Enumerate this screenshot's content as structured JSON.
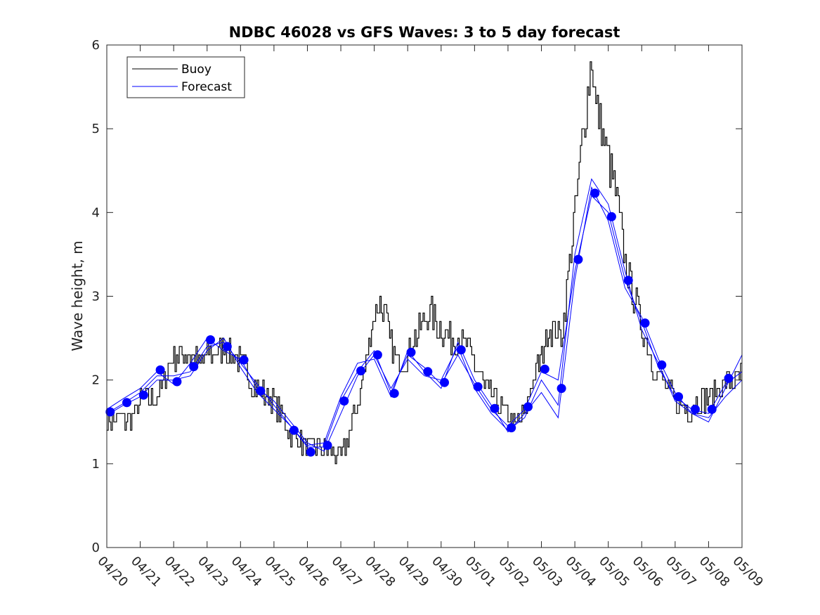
{
  "chart_data": {
    "type": "line",
    "title": "NDBC 46028 vs GFS Waves: 3 to 5 day forecast",
    "xlabel": "",
    "ylabel": "Wave height, m",
    "ylim": [
      0,
      6
    ],
    "yticks": [
      0,
      1,
      2,
      3,
      4,
      5,
      6
    ],
    "xlim": [
      0,
      19
    ],
    "xticks": [
      0,
      1,
      2,
      3,
      4,
      5,
      6,
      7,
      8,
      9,
      10,
      11,
      12,
      13,
      14,
      15,
      16,
      17,
      18,
      19
    ],
    "xtick_labels": [
      "04/20",
      "04/21",
      "04/22",
      "04/23",
      "04/24",
      "04/25",
      "04/26",
      "04/27",
      "04/28",
      "04/29",
      "04/30",
      "05/01",
      "05/02",
      "05/03",
      "05/04",
      "05/05",
      "05/06",
      "05/07",
      "05/08",
      "05/09"
    ],
    "grid": false,
    "legend": {
      "position": "top-left",
      "entries": [
        "Buoy",
        "Forecast"
      ]
    },
    "colors": {
      "buoy": "#000000",
      "forecast": "#0000ff",
      "marker": "#0000ff"
    },
    "buoy": {
      "name": "Buoy",
      "days": [
        0,
        0.3,
        0.7,
        1,
        1.5,
        1.8,
        2,
        2.2,
        2.5,
        2.8,
        3,
        3.2,
        3.5,
        4,
        4.3,
        4.6,
        5,
        5.3,
        5.6,
        6,
        6.3,
        6.6,
        6.8,
        7,
        7.2,
        7.5,
        7.7,
        7.9,
        8.1,
        8.3,
        8.5,
        8.7,
        9,
        9.2,
        9.5,
        9.7,
        10,
        10.3,
        10.6,
        11,
        11.3,
        11.6,
        12,
        12.2,
        12.5,
        12.7,
        13,
        13.2,
        13.4,
        13.6,
        13.8,
        14,
        14.2,
        14.4,
        14.5,
        14.6,
        14.8,
        15,
        15.2,
        15.4,
        15.6,
        15.9,
        16.1,
        16.3,
        16.6,
        16.9,
        17.1,
        17.4,
        17.7,
        18,
        18.3,
        18.6,
        19
      ],
      "values": [
        1.5,
        1.55,
        1.5,
        1.75,
        1.8,
        2.1,
        2.3,
        2.3,
        2.3,
        2.2,
        2.3,
        2.3,
        2.4,
        2.2,
        2.0,
        1.85,
        1.75,
        1.5,
        1.3,
        1.2,
        1.2,
        1.15,
        1.1,
        1.1,
        1.3,
        1.7,
        2.1,
        2.6,
        2.95,
        2.8,
        2.4,
        2.2,
        2.3,
        2.5,
        2.7,
        2.8,
        2.6,
        2.5,
        2.5,
        2.2,
        1.9,
        1.75,
        1.55,
        1.45,
        1.6,
        1.95,
        2.3,
        2.6,
        2.6,
        2.5,
        3.3,
        4.0,
        4.8,
        5.5,
        5.9,
        5.3,
        5.0,
        4.6,
        4.3,
        3.7,
        3.2,
        2.8,
        2.5,
        2.2,
        2.0,
        1.8,
        1.7,
        1.65,
        1.75,
        1.8,
        1.9,
        2.0,
        2.05
      ]
    },
    "forecast_markers": {
      "name": "Forecast",
      "days": [
        0.1,
        0.6,
        1.1,
        1.6,
        2.1,
        2.6,
        3.1,
        3.6,
        4.1,
        4.6,
        5.6,
        6.1,
        6.6,
        7.1,
        7.6,
        8.1,
        8.6,
        9.1,
        9.6,
        10.1,
        10.6,
        11.1,
        11.6,
        12.1,
        12.6,
        13.1,
        13.6,
        14.1,
        14.6,
        15.1,
        15.6,
        16.1,
        16.6,
        17.1,
        17.6,
        18.1,
        18.6
      ],
      "values": [
        1.62,
        1.73,
        1.82,
        2.12,
        1.98,
        2.16,
        2.48,
        2.4,
        2.24,
        1.87,
        1.4,
        1.14,
        1.22,
        1.75,
        2.11,
        2.3,
        1.84,
        2.33,
        2.1,
        1.97,
        2.36,
        1.92,
        1.66,
        1.43,
        1.68,
        2.13,
        1.9,
        3.44,
        4.23,
        3.95,
        3.19,
        2.68,
        2.18,
        1.8,
        1.65,
        1.65,
        2.02
      ]
    },
    "forecast_runs": [
      {
        "days": [
          0,
          0.5,
          1,
          1.5,
          2,
          2.5,
          3,
          3.5,
          4,
          4.5,
          5,
          5.5,
          6,
          6.5,
          7,
          7.5,
          8,
          8.5,
          9,
          9.5,
          10,
          10.5,
          11,
          11.5,
          12,
          12.5,
          13,
          13.5,
          14,
          14.5,
          15,
          15.5,
          16,
          16.5,
          17,
          17.5,
          18,
          18.5,
          19
        ],
        "values": [
          1.6,
          1.72,
          1.85,
          2.05,
          2.05,
          2.1,
          2.4,
          2.45,
          2.2,
          1.95,
          1.7,
          1.45,
          1.2,
          1.2,
          1.75,
          2.1,
          2.35,
          1.85,
          2.3,
          2.15,
          1.95,
          2.3,
          1.95,
          1.65,
          1.45,
          1.65,
          2.1,
          2.0,
          3.3,
          4.2,
          4.0,
          3.2,
          2.7,
          2.15,
          1.8,
          1.65,
          1.6,
          1.95,
          2.1
        ]
      },
      {
        "days": [
          0,
          0.5,
          1,
          1.5,
          2,
          2.5,
          3,
          3.5,
          4,
          4.5,
          5,
          5.5,
          6,
          6.5,
          7,
          7.5,
          8,
          8.5,
          9,
          9.5,
          10,
          10.5,
          11,
          11.5,
          12,
          12.5,
          13,
          13.5,
          14,
          14.5,
          15,
          15.5,
          16,
          16.5,
          17,
          17.5,
          18,
          18.5,
          19
        ],
        "values": [
          1.65,
          1.78,
          1.9,
          2.1,
          1.95,
          2.2,
          2.5,
          2.35,
          2.25,
          1.9,
          1.75,
          1.5,
          1.25,
          1.15,
          1.6,
          2.05,
          2.3,
          1.9,
          2.25,
          2.05,
          2.0,
          2.4,
          1.9,
          1.6,
          1.4,
          1.55,
          2.0,
          1.7,
          3.5,
          4.4,
          4.1,
          3.3,
          2.6,
          2.2,
          1.75,
          1.6,
          1.55,
          1.8,
          2.0
        ]
      },
      {
        "days": [
          0,
          0.5,
          1,
          1.5,
          2,
          2.5,
          3,
          3.5,
          4,
          4.5,
          5,
          5.5,
          6,
          6.5,
          7,
          7.5,
          8,
          8.5,
          9,
          9.5,
          10,
          10.5,
          11,
          11.5,
          12,
          12.5,
          13,
          13.5,
          14,
          14.5,
          15,
          15.5,
          16,
          16.5,
          17,
          17.5,
          18,
          18.5,
          19
        ],
        "values": [
          1.58,
          1.7,
          1.8,
          2.0,
          2.0,
          2.05,
          2.35,
          2.5,
          2.15,
          1.85,
          1.65,
          1.45,
          1.22,
          1.25,
          1.8,
          2.2,
          2.25,
          1.8,
          2.35,
          2.1,
          1.9,
          2.45,
          2.0,
          1.7,
          1.38,
          1.6,
          1.85,
          1.55,
          3.2,
          4.3,
          3.9,
          3.1,
          2.75,
          2.25,
          1.85,
          1.6,
          1.5,
          1.9,
          2.3
        ]
      }
    ]
  }
}
